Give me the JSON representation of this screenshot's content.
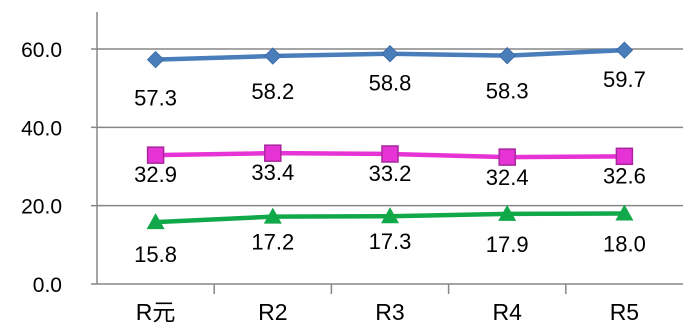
{
  "chart_data": {
    "type": "line",
    "categories": [
      "R元",
      "R2",
      "R3",
      "R4",
      "R5"
    ],
    "series": [
      {
        "values": [
          57.3,
          58.2,
          58.8,
          58.3,
          59.7
        ],
        "color": "#4a7ebb",
        "marker": "diamond"
      },
      {
        "values": [
          32.9,
          33.4,
          33.2,
          32.4,
          32.6
        ],
        "color": "#e633d6",
        "marker": "square"
      },
      {
        "values": [
          15.8,
          17.2,
          17.3,
          17.9,
          18.0
        ],
        "color": "#11a84a",
        "marker": "triangle"
      }
    ],
    "ylim": [
      0,
      60
    ],
    "yticks": [
      0,
      20,
      40,
      60
    ],
    "ytick_labels": [
      "0.0",
      "20.0",
      "40.0",
      "60.0"
    ],
    "data_labels": [
      [
        "57.3",
        "58.2",
        "58.8",
        "58.3",
        "59.7"
      ],
      [
        "32.9",
        "33.4",
        "33.2",
        "32.4",
        "32.6"
      ],
      [
        "15.8",
        "17.2",
        "17.3",
        "17.9",
        "18.0"
      ]
    ],
    "grid": true,
    "legend": "none"
  }
}
